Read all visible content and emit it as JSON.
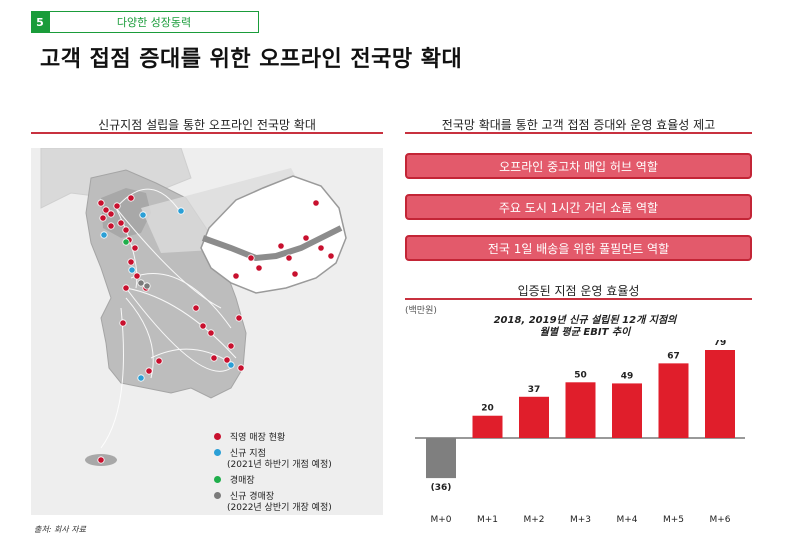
{
  "header": {
    "section_number": "5",
    "section_label": "다양한 성장동력",
    "title": "고객 접점 증대를 위한 오프라인 전국망 확대"
  },
  "left_panel": {
    "title": "신규지점 설립을 통한 오프라인 전국망 확대",
    "legend": [
      {
        "label": "직영 매장 현황",
        "color": "#c8102e"
      },
      {
        "label": "신규 지점",
        "sub": "(2021년 하반기 개점 예정)",
        "color": "#2a9fd6"
      },
      {
        "label": "경매장",
        "color": "#1fae4b"
      },
      {
        "label": "신규 경매장",
        "sub": "(2022년 상반기 개장 예정)",
        "color": "#7a7a7a"
      }
    ]
  },
  "right_panel": {
    "title": "전국망 확대를 통한 고객 접점 증대와 운영 효율성 제고",
    "roles": [
      "오프라인 중고차 매입 허브 역할",
      "주요 도시 1시간 거리 쇼룸 역할",
      "전국 1일 배송을 위한 풀필먼트 역할"
    ],
    "chart_section_title": "입증된 지점 운영 효율성"
  },
  "chart_data": {
    "type": "bar",
    "title": "2018, 2019년 신규 설립된 12개 지점의",
    "subtitle": "월별 평균 EBIT 추이",
    "unit": "(백만원)",
    "categories": [
      "M+0",
      "M+1",
      "M+2",
      "M+3",
      "M+4",
      "M+5",
      "M+6"
    ],
    "values": [
      -36,
      20,
      37,
      50,
      49,
      67,
      79
    ],
    "value_labels": [
      "(36)",
      "20",
      "37",
      "50",
      "49",
      "67",
      "79"
    ],
    "colors": {
      "positive": "#e01e2b",
      "negative": "#7f7f7f"
    },
    "ylim": [
      -36,
      79
    ]
  },
  "source": "출처: 회사 자료"
}
